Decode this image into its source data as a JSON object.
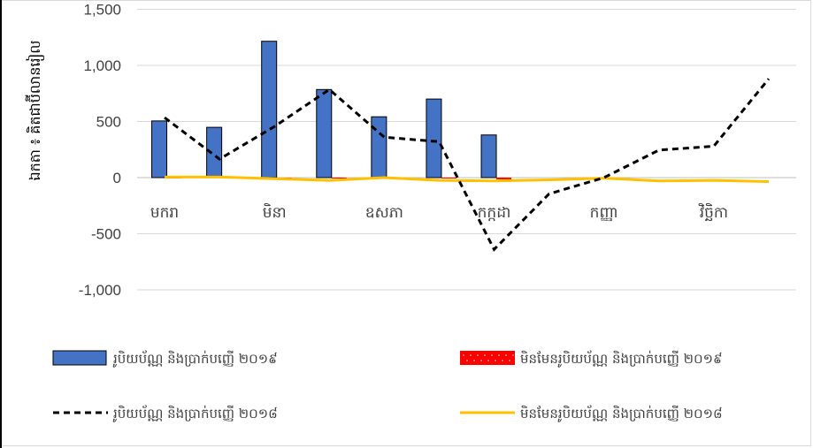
{
  "chart_data": {
    "type": "bar",
    "title": "",
    "xlabel": "",
    "ylabel": "ឯកតា ៖ គិតជាប៊ីលានរៀល",
    "ylim": [
      -1000,
      1500
    ],
    "yticks": [
      1500,
      1000,
      500,
      0,
      -500,
      -1000
    ],
    "ytick_labels": [
      "1,500",
      "1,000",
      "500",
      "0",
      "-500",
      "-1,000"
    ],
    "categories": [
      "jan",
      "feb",
      "mar",
      "apr",
      "may",
      "jun",
      "jul",
      "aug",
      "sep",
      "oct",
      "nov",
      "dec"
    ],
    "category_labels": [
      "មករា",
      "",
      "មិនា",
      "",
      "ឧសភា",
      "",
      "កក្កដា",
      "",
      "កញ្ញា",
      "",
      "វិច្ឆិកា",
      ""
    ],
    "series": [
      {
        "name": "រូបិយប័ណ្ណ និងប្រាក់បញ្ញើ ២០១៩",
        "kind": "bar",
        "color": "#4472c4",
        "values": [
          505,
          448,
          1215,
          785,
          542,
          700,
          380,
          null,
          null,
          null,
          null,
          null
        ]
      },
      {
        "name": "មិនមែនរូបិយប័ណ្ណ និងប្រាក់បញ្ញើ ២០១៩",
        "kind": "bar",
        "color": "#ff0000",
        "values": [
          0,
          0,
          -5,
          -5,
          0,
          -5,
          -15,
          null,
          null,
          null,
          null,
          null
        ]
      },
      {
        "name": "រូបិយប័ណ្ណ និងប្រាក់បញ្ញើ ២០១៨",
        "kind": "line-dashed",
        "color": "#000000",
        "values": [
          535,
          165,
          455,
          785,
          360,
          320,
          -640,
          -145,
          0,
          245,
          280,
          880
        ]
      },
      {
        "name": "មិនមែនរូបិយប័ណ្ណ និងប្រាក់បញ្ញើ ២០១៨",
        "kind": "line",
        "color": "#ffc000",
        "values": [
          5,
          5,
          -10,
          -25,
          0,
          -25,
          -30,
          -20,
          -5,
          -30,
          -25,
          -35
        ]
      }
    ]
  }
}
